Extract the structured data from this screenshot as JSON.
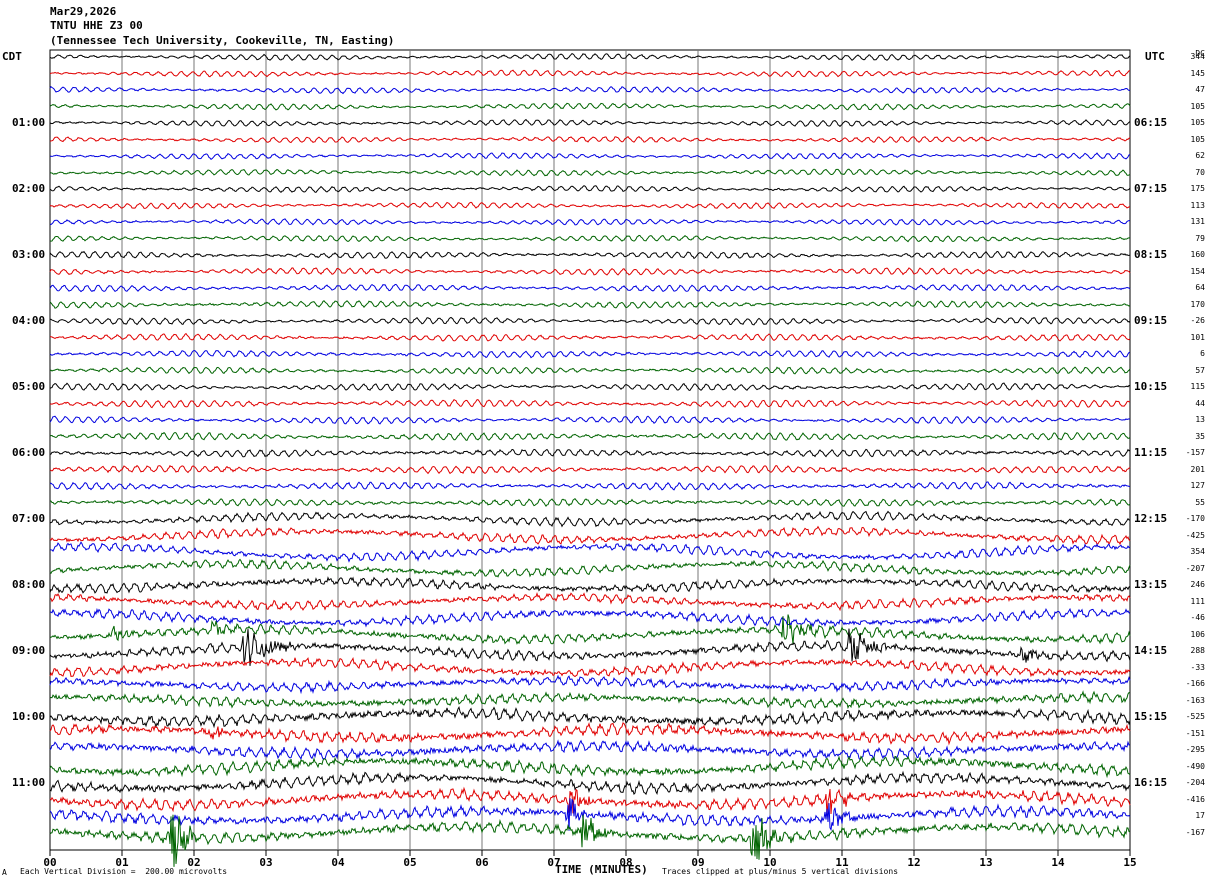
{
  "header": {
    "date": "Mar29,2026",
    "station": "TNTU HHE Z3 00",
    "location": "(Tennessee Tech University, Cookeville, TN, Easting)"
  },
  "axis_left_title": "CDT",
  "axis_right_title": "UTC",
  "dc_title": "DC",
  "footer": {
    "scale_note": "Each Vertical Division =  200.00 microvolts",
    "xlabel": "TIME (MINUTES)",
    "clip_note": "Traces clipped at plus/minus 5 vertical divisions",
    "corner_mark": "A"
  },
  "trace_colors": [
    "#000000",
    "#e00000",
    "#0000e0",
    "#006400"
  ],
  "chart_data": {
    "type": "line",
    "title": "TNTU HHE Z3 00",
    "xlabel": "TIME (MINUTES)",
    "xlim": [
      0,
      15
    ],
    "x_ticks": [
      "00",
      "01",
      "02",
      "03",
      "04",
      "05",
      "06",
      "07",
      "08",
      "09",
      "10",
      "11",
      "12",
      "13",
      "14",
      "15"
    ],
    "grid": "vertical lines at each minute",
    "left_hour_labels": [
      {
        "row": 4,
        "label": "01:00"
      },
      {
        "row": 8,
        "label": "02:00"
      },
      {
        "row": 12,
        "label": "03:00"
      },
      {
        "row": 16,
        "label": "04:00"
      },
      {
        "row": 20,
        "label": "05:00"
      },
      {
        "row": 24,
        "label": "06:00"
      },
      {
        "row": 28,
        "label": "07:00"
      },
      {
        "row": 32,
        "label": "08:00"
      },
      {
        "row": 36,
        "label": "09:00"
      },
      {
        "row": 40,
        "label": "10:00"
      },
      {
        "row": 44,
        "label": "11:00"
      }
    ],
    "right_hour_labels": [
      {
        "row": 4,
        "label": "06:15"
      },
      {
        "row": 8,
        "label": "07:15"
      },
      {
        "row": 12,
        "label": "08:15"
      },
      {
        "row": 16,
        "label": "09:15"
      },
      {
        "row": 20,
        "label": "10:15"
      },
      {
        "row": 24,
        "label": "11:15"
      },
      {
        "row": 28,
        "label": "12:15"
      },
      {
        "row": 32,
        "label": "13:15"
      },
      {
        "row": 36,
        "label": "14:15"
      },
      {
        "row": 40,
        "label": "15:15"
      },
      {
        "row": 44,
        "label": "16:15"
      }
    ],
    "dc_offsets": [
      344,
      145,
      47,
      105,
      105,
      105,
      62,
      70,
      175,
      113,
      131,
      79,
      160,
      154,
      64,
      170,
      -26,
      101,
      6,
      57,
      115,
      44,
      13,
      35,
      -157,
      201,
      127,
      55,
      -170,
      -425,
      354,
      -207,
      246,
      111,
      -46,
      106,
      288,
      -33,
      -166,
      -163,
      -525,
      -151,
      -295,
      -490,
      -204,
      -416,
      17,
      -167
    ],
    "traces": [
      {
        "row": 0,
        "amp": 2.5,
        "noise": 0.5,
        "color": 0
      },
      {
        "row": 1,
        "amp": 2.5,
        "noise": 0.5,
        "color": 1
      },
      {
        "row": 2,
        "amp": 2.5,
        "noise": 0.5,
        "color": 2
      },
      {
        "row": 3,
        "amp": 2.5,
        "noise": 0.5,
        "color": 3
      },
      {
        "row": 4,
        "amp": 2.5,
        "noise": 0.5,
        "color": 0
      },
      {
        "row": 5,
        "amp": 2.5,
        "noise": 0.5,
        "color": 1
      },
      {
        "row": 6,
        "amp": 2.5,
        "noise": 0.5,
        "color": 2
      },
      {
        "row": 7,
        "amp": 2.5,
        "noise": 0.5,
        "color": 3
      },
      {
        "row": 8,
        "amp": 2.5,
        "noise": 0.5,
        "color": 0
      },
      {
        "row": 9,
        "amp": 2.5,
        "noise": 0.5,
        "color": 1
      },
      {
        "row": 10,
        "amp": 2.5,
        "noise": 0.5,
        "color": 2
      },
      {
        "row": 11,
        "amp": 2.5,
        "noise": 0.5,
        "color": 3
      },
      {
        "row": 12,
        "amp": 2.8,
        "noise": 0.6,
        "color": 0
      },
      {
        "row": 13,
        "amp": 2.8,
        "noise": 0.6,
        "color": 1
      },
      {
        "row": 14,
        "amp": 2.8,
        "noise": 0.6,
        "color": 2
      },
      {
        "row": 15,
        "amp": 2.8,
        "noise": 0.6,
        "color": 3
      },
      {
        "row": 16,
        "amp": 2.8,
        "noise": 0.6,
        "color": 0
      },
      {
        "row": 17,
        "amp": 2.8,
        "noise": 0.6,
        "color": 1
      },
      {
        "row": 18,
        "amp": 2.8,
        "noise": 0.6,
        "color": 2
      },
      {
        "row": 19,
        "amp": 2.8,
        "noise": 0.6,
        "color": 3
      },
      {
        "row": 20,
        "amp": 3,
        "noise": 0.6,
        "color": 0
      },
      {
        "row": 21,
        "amp": 3.2,
        "noise": 0.6,
        "color": 1
      },
      {
        "row": 22,
        "amp": 3,
        "noise": 0.6,
        "color": 2
      },
      {
        "row": 23,
        "amp": 3.2,
        "noise": 0.7,
        "color": 3
      },
      {
        "row": 24,
        "amp": 3,
        "noise": 0.8,
        "color": 0
      },
      {
        "row": 25,
        "amp": 3,
        "noise": 0.8,
        "color": 1
      },
      {
        "row": 26,
        "amp": 3,
        "noise": 0.8,
        "color": 2
      },
      {
        "row": 27,
        "amp": 3,
        "noise": 0.8,
        "color": 3
      },
      {
        "row": 28,
        "amp": 3.5,
        "noise": 1.2,
        "color": 0
      },
      {
        "row": 29,
        "amp": 3.5,
        "noise": 1.5,
        "color": 1
      },
      {
        "row": 30,
        "amp": 3.5,
        "noise": 1.5,
        "color": 2
      },
      {
        "row": 31,
        "amp": 3.5,
        "noise": 1.5,
        "color": 3
      },
      {
        "row": 32,
        "amp": 3.5,
        "noise": 1.8,
        "color": 0
      },
      {
        "row": 33,
        "amp": 3.5,
        "noise": 1.8,
        "color": 1
      },
      {
        "row": 34,
        "amp": 3.5,
        "noise": 1.8,
        "color": 2
      },
      {
        "row": 35,
        "amp": 3.5,
        "noise": 2,
        "color": 3
      },
      {
        "row": 36,
        "amp": 3.5,
        "noise": 2,
        "color": 0
      },
      {
        "row": 37,
        "amp": 3.5,
        "noise": 2,
        "color": 1
      },
      {
        "row": 38,
        "amp": 3.5,
        "noise": 2,
        "color": 2
      },
      {
        "row": 39,
        "amp": 3.5,
        "noise": 2.2,
        "color": 3
      },
      {
        "row": 40,
        "amp": 4,
        "noise": 2.5,
        "color": 0
      },
      {
        "row": 41,
        "amp": 4,
        "noise": 2.5,
        "color": 1
      },
      {
        "row": 42,
        "amp": 4,
        "noise": 2.5,
        "color": 2
      },
      {
        "row": 43,
        "amp": 4,
        "noise": 2.5,
        "color": 3
      },
      {
        "row": 44,
        "amp": 4,
        "noise": 2.5,
        "color": 0
      },
      {
        "row": 45,
        "amp": 4,
        "noise": 2.5,
        "color": 1
      },
      {
        "row": 46,
        "amp": 4,
        "noise": 2.5,
        "color": 2
      },
      {
        "row": 47,
        "amp": 4,
        "noise": 2.5,
        "color": 3
      }
    ],
    "bursts": [
      {
        "row": 35,
        "t": 0.85,
        "amp": 10,
        "dur": 0.4
      },
      {
        "row": 35,
        "t": 2.25,
        "amp": 12,
        "dur": 0.4
      },
      {
        "row": 35,
        "t": 10.2,
        "amp": 22,
        "dur": 0.6
      },
      {
        "row": 36,
        "t": 2.7,
        "amp": 22,
        "dur": 0.8
      },
      {
        "row": 36,
        "t": 11.1,
        "amp": 20,
        "dur": 0.7
      },
      {
        "row": 36,
        "t": 13.5,
        "amp": 8,
        "dur": 0.5
      },
      {
        "row": 41,
        "t": 2.25,
        "amp": 10,
        "dur": 0.3
      },
      {
        "row": 45,
        "t": 7.2,
        "amp": 22,
        "dur": 0.3
      },
      {
        "row": 45,
        "t": 10.8,
        "amp": 22,
        "dur": 0.4
      },
      {
        "row": 46,
        "t": 7.2,
        "amp": 25,
        "dur": 0.3
      },
      {
        "row": 46,
        "t": 10.8,
        "amp": 20,
        "dur": 0.4
      },
      {
        "row": 47,
        "t": 1.7,
        "amp": 35,
        "dur": 0.4
      },
      {
        "row": 47,
        "t": 7.4,
        "amp": 25,
        "dur": 0.4
      },
      {
        "row": 47,
        "t": 9.75,
        "amp": 35,
        "dur": 0.4
      }
    ]
  }
}
